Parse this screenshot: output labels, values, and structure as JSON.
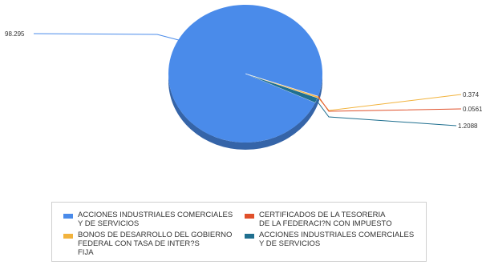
{
  "chart_data": {
    "type": "pie",
    "style": "3d",
    "slices": [
      {
        "label": "ACCIONES INDUSTRIALES COMERCIALES\nY DE SERVICIOS",
        "value": 98.295,
        "value_label": "98.295",
        "color": "#4a8bea"
      },
      {
        "label": "CERTIFICADOS DE LA TESORERIA\nDE LA FEDERACI?N CON IMPUESTO",
        "value": 0.0561,
        "value_label": "0.0561",
        "color": "#e0502a"
      },
      {
        "label": "BONOS DE DESARROLLO DEL GOBIERNO\nFEDERAL CON TASA DE INTER?S\nFIJA",
        "value": 0.374,
        "value_label": "0.374",
        "color": "#f2b33d"
      },
      {
        "label": "ACCIONES INDUSTRIALES COMERCIALES\nY DE SERVICIOS",
        "value": 1.2088,
        "value_label": "1.2088",
        "color": "#1f6f8f"
      }
    ],
    "legend_position": "bottom"
  }
}
